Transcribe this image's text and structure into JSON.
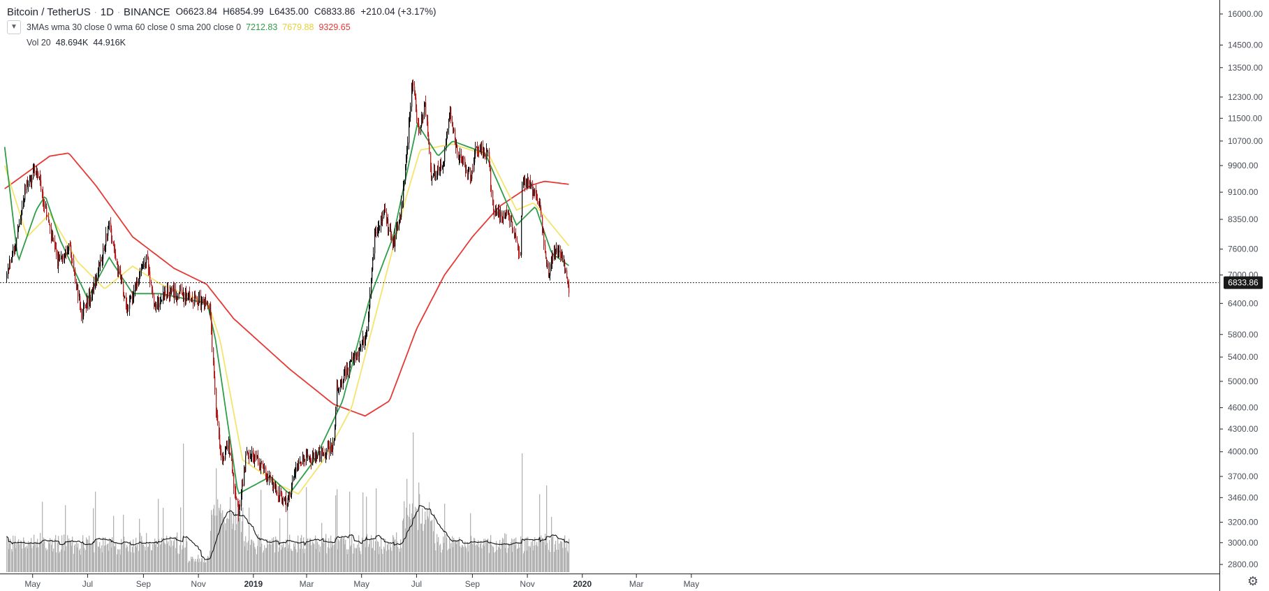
{
  "legend": {
    "symbol": "Bitcoin / TetherUS",
    "interval": "1D",
    "exchange": "BINANCE",
    "open": "O6623.84",
    "high": "H6854.99",
    "low": "L6435.00",
    "close": "C6833.86",
    "change": "+210.04 (+3.17%)",
    "collapse_icon": "chevron-down-icon",
    "ma_indicator": {
      "name": "3MAs wma 30 close 0 wma 60 close 0 sma 200 close 0",
      "values": [
        "7212.83",
        "7679.88",
        "9329.65"
      ],
      "colors": [
        "#2e9e48",
        "#f5e46c",
        "#e53935"
      ]
    },
    "vol_indicator": {
      "name": "Vol 20",
      "value1": "48.694K",
      "value2": "44.916K"
    }
  },
  "settings_icon": "gear-icon",
  "chart_data": {
    "type": "candlestick",
    "price_axis": {
      "ticks": [
        "16000.00",
        "14500.00",
        "13500.00",
        "12300.00",
        "11500.00",
        "10700.00",
        "9900.00",
        "9100.00",
        "8350.00",
        "7600.00",
        "7000.00",
        "6400.00",
        "5800.00",
        "5400.00",
        "5000.00",
        "4600.00",
        "4300.00",
        "4000.00",
        "3700.00",
        "3460.00",
        "3200.00",
        "3000.00",
        "2800.00"
      ],
      "scale": "log",
      "range": [
        2700,
        17000
      ]
    },
    "time_axis": {
      "labels": [
        "May",
        "Jul",
        "Sep",
        "Nov",
        "2019",
        "Mar",
        "May",
        "Jul",
        "Sep",
        "Nov",
        "2020",
        "Mar",
        "May"
      ],
      "bold_labels": [
        "2019",
        "2020"
      ]
    },
    "last_price": "6833.86",
    "colors": {
      "up": "#111111",
      "down": "#b71c1c",
      "volume": "#b3b3b3",
      "vol_ma": "#111111"
    },
    "price_anchors": [
      [
        "2018-04-02",
        7000
      ],
      [
        "2018-04-14",
        8000
      ],
      [
        "2018-04-24",
        9300
      ],
      [
        "2018-05-05",
        9800
      ],
      [
        "2018-05-15",
        8600
      ],
      [
        "2018-05-28",
        7300
      ],
      [
        "2018-06-10",
        7700
      ],
      [
        "2018-06-24",
        6200
      ],
      [
        "2018-07-02",
        6500
      ],
      [
        "2018-07-16",
        7300
      ],
      [
        "2018-07-24",
        8300
      ],
      [
        "2018-08-05",
        7000
      ],
      [
        "2018-08-14",
        6300
      ],
      [
        "2018-08-28",
        7000
      ],
      [
        "2018-09-05",
        7400
      ],
      [
        "2018-09-12",
        6300
      ],
      [
        "2018-09-24",
        6600
      ],
      [
        "2018-10-10",
        6600
      ],
      [
        "2018-11-01",
        6450
      ],
      [
        "2018-11-13",
        6400
      ],
      [
        "2018-11-20",
        4600
      ],
      [
        "2018-11-26",
        3900
      ],
      [
        "2018-12-04",
        4100
      ],
      [
        "2018-12-15",
        3250
      ],
      [
        "2018-12-24",
        4000
      ],
      [
        "2019-01-06",
        3900
      ],
      [
        "2019-01-28",
        3500
      ],
      [
        "2019-02-07",
        3400
      ],
      [
        "2019-02-20",
        3900
      ],
      [
        "2019-03-10",
        3900
      ],
      [
        "2019-03-31",
        4100
      ],
      [
        "2019-04-03",
        4900
      ],
      [
        "2019-04-23",
        5400
      ],
      [
        "2019-05-07",
        5800
      ],
      [
        "2019-05-15",
        7900
      ],
      [
        "2019-05-26",
        8500
      ],
      [
        "2019-06-05",
        7700
      ],
      [
        "2019-06-15",
        8800
      ],
      [
        "2019-06-26",
        12900
      ],
      [
        "2019-07-03",
        11000
      ],
      [
        "2019-07-10",
        12100
      ],
      [
        "2019-07-17",
        9500
      ],
      [
        "2019-07-31",
        10000
      ],
      [
        "2019-08-06",
        11900
      ],
      [
        "2019-08-15",
        10300
      ],
      [
        "2019-08-30",
        9600
      ],
      [
        "2019-09-05",
        10500
      ],
      [
        "2019-09-18",
        10200
      ],
      [
        "2019-09-24",
        8500
      ],
      [
        "2019-10-10",
        8500
      ],
      [
        "2019-10-24",
        7400
      ],
      [
        "2019-10-26",
        9500
      ],
      [
        "2019-11-07",
        9200
      ],
      [
        "2019-11-14",
        8700
      ],
      [
        "2019-11-24",
        7000
      ],
      [
        "2019-11-30",
        7600
      ],
      [
        "2019-12-08",
        7500
      ],
      [
        "2019-12-17",
        6700
      ]
    ],
    "wma30_anchors": [
      [
        "2018-03-31",
        10500
      ],
      [
        "2018-04-15",
        7300
      ],
      [
        "2018-05-05",
        8600
      ],
      [
        "2018-05-15",
        9000
      ],
      [
        "2018-06-01",
        7800
      ],
      [
        "2018-07-01",
        6500
      ],
      [
        "2018-07-25",
        7400
      ],
      [
        "2018-08-20",
        6600
      ],
      [
        "2018-09-20",
        6600
      ],
      [
        "2018-11-11",
        6400
      ],
      [
        "2018-11-20",
        5700
      ],
      [
        "2018-12-15",
        3500
      ],
      [
        "2019-01-20",
        3700
      ],
      [
        "2019-02-10",
        3500
      ],
      [
        "2019-03-10",
        3900
      ],
      [
        "2019-04-10",
        4700
      ],
      [
        "2019-05-10",
        6500
      ],
      [
        "2019-06-05",
        7900
      ],
      [
        "2019-07-02",
        11300
      ],
      [
        "2019-07-25",
        10200
      ],
      [
        "2019-08-10",
        10700
      ],
      [
        "2019-09-15",
        10300
      ],
      [
        "2019-10-20",
        8200
      ],
      [
        "2019-11-10",
        8700
      ],
      [
        "2019-11-28",
        7500
      ],
      [
        "2019-12-17",
        7212.83
      ]
    ],
    "wma60_anchors": [
      [
        "2018-03-31",
        9900
      ],
      [
        "2018-04-25",
        7900
      ],
      [
        "2018-05-20",
        8500
      ],
      [
        "2018-06-20",
        7300
      ],
      [
        "2018-07-20",
        6700
      ],
      [
        "2018-08-20",
        7200
      ],
      [
        "2018-09-20",
        6800
      ],
      [
        "2018-11-12",
        6400
      ],
      [
        "2018-11-25",
        5700
      ],
      [
        "2018-12-20",
        3900
      ],
      [
        "2019-01-30",
        3600
      ],
      [
        "2019-02-20",
        3500
      ],
      [
        "2019-03-20",
        3900
      ],
      [
        "2019-04-20",
        4600
      ],
      [
        "2019-05-20",
        6400
      ],
      [
        "2019-06-20",
        9000
      ],
      [
        "2019-07-05",
        10400
      ],
      [
        "2019-08-10",
        10600
      ],
      [
        "2019-09-20",
        10200
      ],
      [
        "2019-10-20",
        8600
      ],
      [
        "2019-11-08",
        8800
      ],
      [
        "2019-12-17",
        7679.88
      ]
    ],
    "sma200_anchors": [
      [
        "2018-03-31",
        9200
      ],
      [
        "2018-05-20",
        10200
      ],
      [
        "2018-06-10",
        10300
      ],
      [
        "2018-07-10",
        9300
      ],
      [
        "2018-08-20",
        7900
      ],
      [
        "2018-10-05",
        7150
      ],
      [
        "2018-11-10",
        6800
      ],
      [
        "2018-12-10",
        6100
      ],
      [
        "2019-02-10",
        5200
      ],
      [
        "2019-03-31",
        4650
      ],
      [
        "2019-05-05",
        4480
      ],
      [
        "2019-06-01",
        4700
      ],
      [
        "2019-07-01",
        5900
      ],
      [
        "2019-08-01",
        7000
      ],
      [
        "2019-09-01",
        7900
      ],
      [
        "2019-10-01",
        8700
      ],
      [
        "2019-11-05",
        9300
      ],
      [
        "2019-11-20",
        9420
      ],
      [
        "2019-12-17",
        9329.65
      ]
    ]
  }
}
